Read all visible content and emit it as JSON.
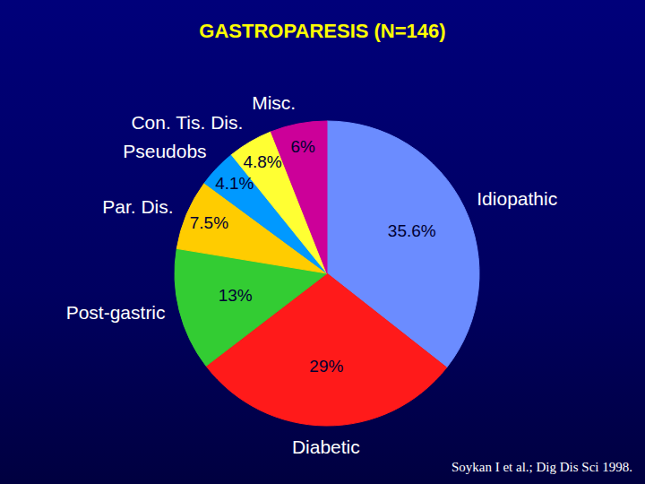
{
  "chart_data": {
    "type": "pie",
    "title": "GASTROPARESIS (N=146)",
    "categories": [
      "Idiopathic",
      "Diabetic",
      "Post-gastric",
      "Par. Dis.",
      "Pseudobs",
      "Con. Tis. Dis.",
      "Misc."
    ],
    "values": [
      35.6,
      29,
      13,
      7.5,
      4.1,
      4.8,
      6
    ],
    "value_labels": [
      "35.6%",
      "29%",
      "13%",
      "7.5%",
      "4.1%",
      "4.8%",
      "6%"
    ],
    "colors": [
      "#6b8cff",
      "#ff1a1a",
      "#33cc33",
      "#ffcc00",
      "#0099ff",
      "#ffff33",
      "#cc0099"
    ],
    "data_labels": true,
    "annotations": [
      "Soykan I et al.; Dig Dis Sci 1998."
    ]
  }
}
